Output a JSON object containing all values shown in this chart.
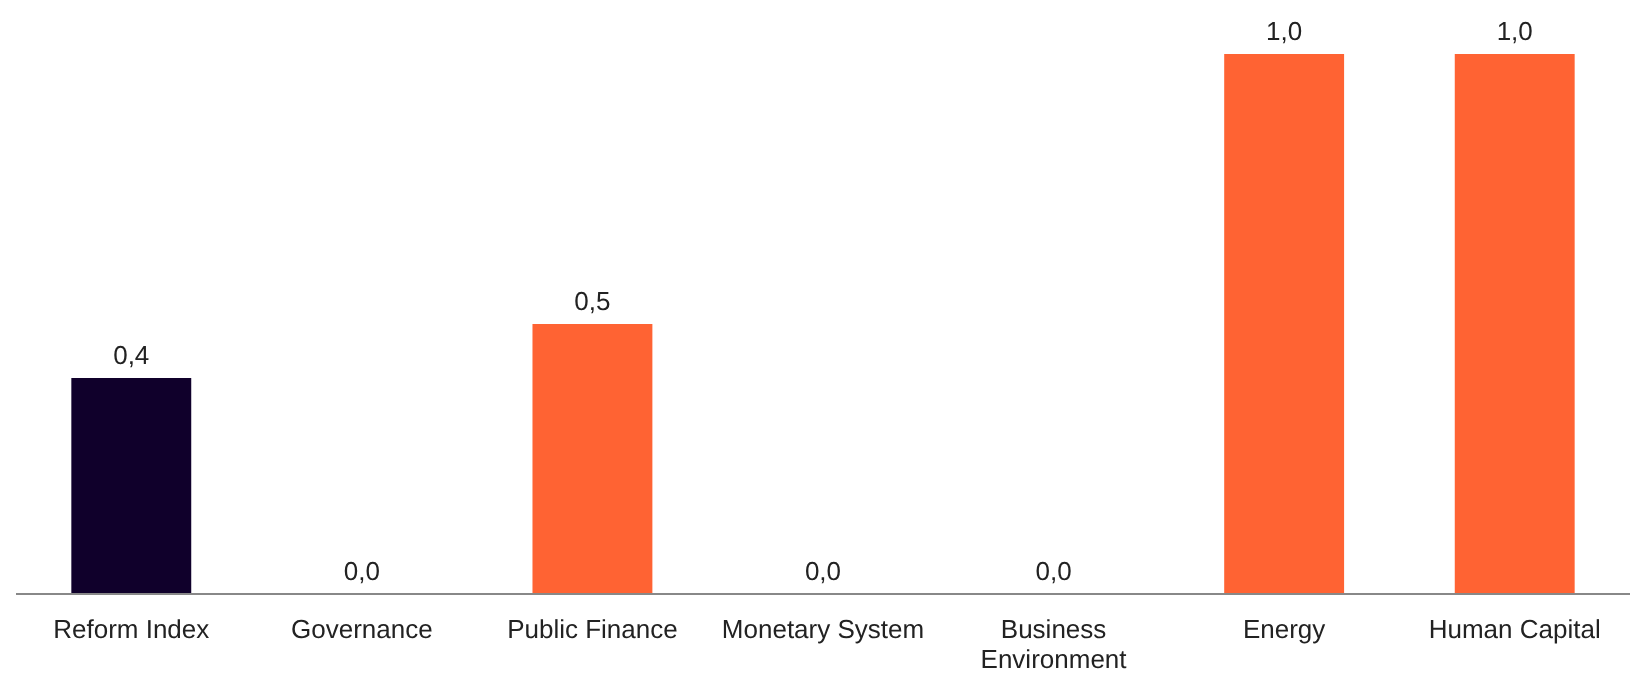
{
  "chart_data": {
    "type": "bar",
    "categories": [
      "Reform Index",
      "Governance",
      "Public Finance",
      "Monetary System",
      "Business Environment",
      "Energy",
      "Human Capital"
    ],
    "values": [
      0.4,
      0,
      0.5,
      0,
      0,
      1,
      1
    ],
    "colors": [
      "#10002b",
      "#ff6333",
      "#ff6333",
      "#ff6333",
      "#ff6333",
      "#ff6333",
      "#ff6333"
    ],
    "value_labels": [
      "0,4",
      "0,0",
      "0,5",
      "0,0",
      "0,0",
      "1,0",
      "1,0"
    ]
  }
}
